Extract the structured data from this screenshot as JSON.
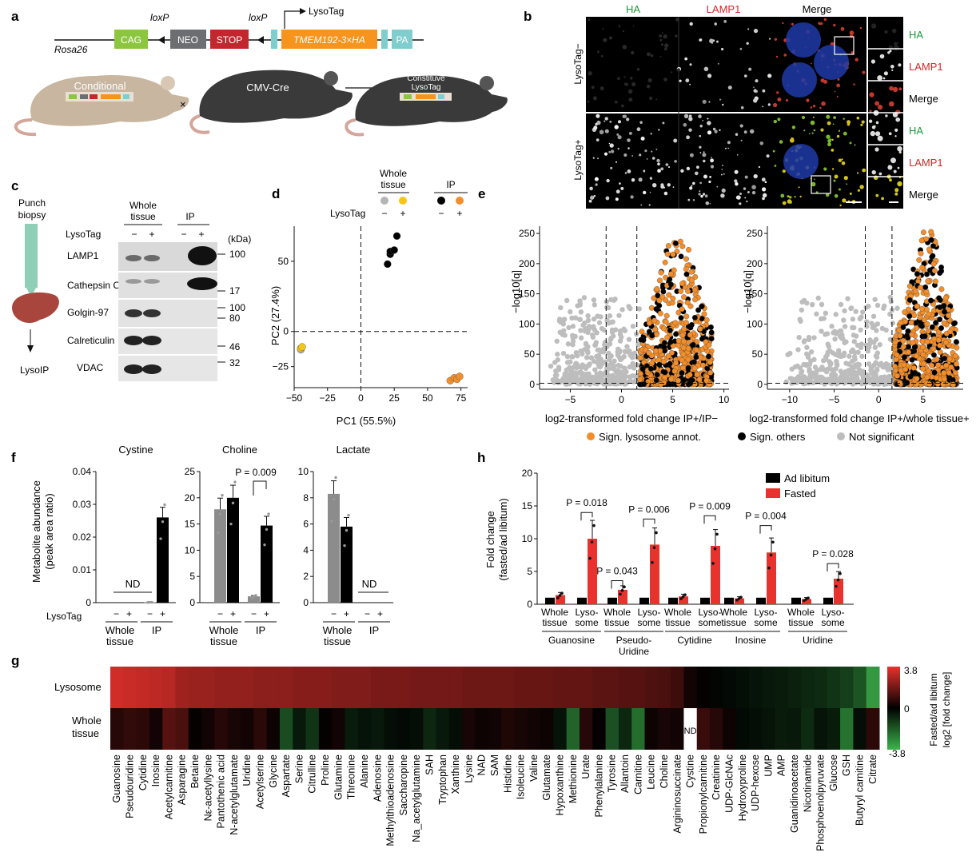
{
  "panels": {
    "a": "a",
    "b": "b",
    "c": "c",
    "d": "d",
    "e": "e",
    "f": "f",
    "g": "g",
    "h": "h"
  },
  "panel_a": {
    "construct": {
      "rosa26": "Rosa26",
      "cag": "CAG",
      "neo": "NEO",
      "stop": "STOP",
      "gene": "TMEM192-3×HA",
      "pa": "PA",
      "loxp1": "loxP",
      "loxp2": "loxP",
      "lysotag": "LysoTag"
    },
    "mice": {
      "conditional": "Conditional",
      "cmvcre": "CMV-Cre",
      "constitutive_1": "Constituve",
      "constitutive_2": "LysoTag",
      "cross": "×"
    },
    "colors": {
      "cag": "#8cc63f",
      "neo": "#6d6e71",
      "stop": "#c1272d",
      "gene": "#f7941d",
      "pa": "#7fcdcd",
      "mouse_tan": "#c8b6a0",
      "mouse_dark": "#3a3a3a"
    }
  },
  "panel_b": {
    "cols": [
      "HA",
      "LAMP1",
      "Merge"
    ],
    "rows": [
      "LysoTag−",
      "LysoTag+"
    ],
    "inset_labels": [
      "HA",
      "LAMP1",
      "Merge"
    ],
    "col_colors": {
      "HA": "#1a9a3a",
      "LAMP1": "#d62728",
      "Merge": "#111111"
    }
  },
  "panel_c": {
    "left_top": "Punch",
    "left_bottom": "biopsy",
    "arrow_label": "LysoIP",
    "group1": "Whole",
    "group1b": "tissue",
    "group2": "IP",
    "lysotag_label": "LysoTag",
    "signs": [
      "−",
      "+",
      "−",
      "+"
    ],
    "kda": "(kDa)",
    "blots": [
      "LAMP1",
      "Cathepsin C",
      "Golgin-97",
      "Calreticulin",
      "VDAC"
    ],
    "markers": [
      "100",
      "17",
      "100",
      "80",
      "46",
      "32"
    ]
  },
  "panel_d": {
    "legend_whole": "Whole",
    "legend_whole2": "tissue",
    "legend_ip": "IP",
    "lysotag_label": "LysoTag",
    "signs": [
      "−",
      "+",
      "−",
      "+"
    ],
    "xlabel": "PC1 (55.5%)",
    "ylabel": "PC2 (27.4%)",
    "xticks": [
      "−50",
      "−25",
      "0",
      "25",
      "50",
      "75"
    ],
    "yticks": [
      "50",
      "0",
      "−25"
    ]
  },
  "panel_e": {
    "ylabel": "−log10[q]",
    "xlabel_left": "log2-transformed fold change IP+/IP−",
    "xlabel_right": "log2-transformed fold change IP+/whole tissue+",
    "yticks": [
      "250",
      "200",
      "150",
      "100",
      "50",
      "0"
    ],
    "xticks_left": [
      "−5",
      "0",
      "5",
      "10"
    ],
    "xticks_right": [
      "−10",
      "−5",
      "0",
      "5"
    ],
    "legend": [
      "Sign. lysosome annot.",
      "Sign. others",
      "Not significant"
    ],
    "colors": {
      "lyso": "#f28e2b",
      "other": "#000000",
      "ns": "#bdbdbd"
    }
  },
  "panel_f": {
    "ylabel1": "Metabolite abundance",
    "ylabel2": "(peak area ratio)",
    "titles": [
      "Cystine",
      "Choline",
      "Lactate"
    ],
    "yticks": [
      [
        "0.04",
        "0.03",
        "0.02",
        "0.01",
        "0"
      ],
      [
        "25",
        "20",
        "15",
        "10",
        "5",
        "0"
      ],
      [
        "10",
        "8",
        "6",
        "4",
        "2",
        "0"
      ]
    ],
    "nd": "ND",
    "pval": "P = 0.009",
    "lysotag_label": "LysoTag",
    "group1": "Whole",
    "group1b": "tissue",
    "group2": "IP",
    "signs": [
      "−",
      "+",
      "−",
      "+"
    ],
    "colors": {
      "minus": "#8c8c8c",
      "plus": "#000000"
    }
  },
  "panel_g": {
    "row_labels": [
      "Lysosome",
      "Whole",
      "tissue"
    ],
    "nd": "ND",
    "metabolites": [
      "Guanosine",
      "Pseudouridine",
      "Cytidine",
      "Inosine",
      "Acetylcarnitine",
      "Asparagine",
      "Betaine",
      "Nε-acetyllysine",
      "Pantothenic acid",
      "N-acetylglutamate",
      "Uridine",
      "Acetylserine",
      "Glycine",
      "Aspartate",
      "Serine",
      "Citrulline",
      "Proline",
      "Glutamine",
      "Threonine",
      "Alanine",
      "Adenosine",
      "Methylthioadenosine",
      "Saccharopine",
      "Na_acetylglutamine",
      "SAH",
      "Tryptophan",
      "Xanthine",
      "Lysine",
      "NAD",
      "SAM",
      "Histidine",
      "Isoleucine",
      "Valine",
      "Glutamate",
      "Hypoxanthine",
      "Methionine",
      "Urate",
      "Phenylalanine",
      "Tyrosine",
      "Allantoin",
      "Carnitine",
      "Leucine",
      "Choline",
      "Argininosuccinate",
      "Cystine",
      "Propionylcarnitine",
      "Creatinine",
      "UDP-GlcNAc",
      "Hydroxyproline",
      "UDP-hexose",
      "UMP",
      "AMP",
      "Guanidinoacetate",
      "Nicotinamide",
      "Phosphoenolpyruvate",
      "Glucose",
      "GSH",
      "Butyryl carnitine",
      "Citrate"
    ],
    "lysosome": [
      3.4,
      3.3,
      3.2,
      3.1,
      3.0,
      2.6,
      2.5,
      2.5,
      2.4,
      2.4,
      2.4,
      2.3,
      2.3,
      2.3,
      2.2,
      2.2,
      2.2,
      2.1,
      2.1,
      2.1,
      2.0,
      2.0,
      2.0,
      1.9,
      1.9,
      1.9,
      1.9,
      1.8,
      1.8,
      1.8,
      1.8,
      1.7,
      1.7,
      1.7,
      1.6,
      1.6,
      1.6,
      1.5,
      1.5,
      1.4,
      1.4,
      1.3,
      1.2,
      1.0,
      0.3,
      0.1,
      -0.1,
      -0.2,
      -0.3,
      -0.4,
      -0.5,
      -0.6,
      -0.7,
      -0.8,
      -0.9,
      -1.1,
      -1.3,
      -1.8,
      -3.2
    ],
    "whole": [
      0.6,
      0.8,
      0.7,
      0.3,
      1.4,
      1.2,
      0.1,
      0.3,
      0.6,
      0.4,
      0.3,
      0.7,
      0.2,
      -1.6,
      -0.5,
      -1.1,
      0.1,
      0.3,
      -0.6,
      -0.4,
      -0.5,
      -0.3,
      -0.2,
      -0.3,
      -0.8,
      -0.5,
      -0.3,
      0.4,
      0.2,
      0.3,
      0.5,
      0.4,
      0.3,
      0.2,
      -0.4,
      -2.1,
      0.6,
      0.1,
      -1.7,
      -0.8,
      -2.3,
      0.2,
      0.4,
      0.3,
      null,
      0.9,
      0.6,
      0.2,
      -0.2,
      -0.3,
      -0.4,
      -0.6,
      -0.5,
      -0.9,
      -0.4,
      -0.6,
      -2.4,
      -0.3,
      0.7
    ],
    "scale_max": "3.8",
    "scale_mid": "0",
    "scale_min": "-3.8",
    "scale_title1": "Fasted/ad libitum",
    "scale_title2": "log2 [fold change]"
  },
  "panel_h": {
    "ylabel1": "Fold change",
    "ylabel2": "(fasted/ad libitum)",
    "yticks": [
      "20",
      "15",
      "10",
      "5",
      "0"
    ],
    "legend": [
      "Ad libitum",
      "Fasted"
    ],
    "colors": {
      "adlib": "#000000",
      "fasted": "#e8322d"
    },
    "pvals": [
      "P = 0.018",
      "P = 0.043",
      "P = 0.006",
      "P = 0.009",
      "P = 0.004",
      "P = 0.028"
    ],
    "groups": [
      "Guanosine",
      "Pseudo-",
      "Uridine",
      "Cytidine",
      "Inosine",
      "Uridine"
    ],
    "sub": [
      "Whole",
      "tissue",
      "Lyso-",
      "some"
    ]
  },
  "chart_data": [
    {
      "type": "scatter",
      "panel": "d",
      "x_label": "PC1 (55.5%)",
      "y_label": "PC2 (27.4%)",
      "xlim": [
        -50,
        80
      ],
      "ylim": [
        -40,
        75
      ],
      "series": [
        {
          "name": "Whole tissue −",
          "color": "#b5b5b5",
          "points": [
            [
              -45,
              -12
            ],
            [
              -45,
              -13
            ]
          ]
        },
        {
          "name": "Whole tissue +",
          "color": "#f5c518",
          "points": [
            [
              -45,
              -12
            ],
            [
              -44,
              -11
            ]
          ]
        },
        {
          "name": "IP −",
          "color": "#000000",
          "points": [
            [
              20,
              48
            ],
            [
              22,
              55
            ],
            [
              22,
              57
            ],
            [
              25,
              58
            ],
            [
              27,
              68
            ]
          ]
        },
        {
          "name": "IP +",
          "color": "#f28e2b",
          "points": [
            [
              67,
              -35
            ],
            [
              70,
              -33
            ],
            [
              72,
              -34
            ],
            [
              74,
              -32
            ]
          ]
        }
      ]
    },
    {
      "type": "bar",
      "panel": "f",
      "title": "Cystine",
      "categories": [
        "WT −",
        "WT +",
        "IP −",
        "IP +"
      ],
      "values": [
        null,
        null,
        0.0001,
        0.026
      ],
      "ylim": [
        0,
        0.04
      ]
    },
    {
      "type": "bar",
      "panel": "f",
      "title": "Choline",
      "categories": [
        "WT −",
        "WT +",
        "IP −",
        "IP +"
      ],
      "values": [
        17.8,
        20.0,
        1.2,
        14.7
      ],
      "ylim": [
        0,
        25
      ]
    },
    {
      "type": "bar",
      "panel": "f",
      "title": "Lactate",
      "categories": [
        "WT −",
        "WT +",
        "IP −",
        "IP +"
      ],
      "values": [
        8.3,
        5.8,
        null,
        null
      ],
      "ylim": [
        0,
        10
      ]
    },
    {
      "type": "bar",
      "panel": "h",
      "ylim": [
        0,
        20
      ],
      "categories": [
        "Guanosine WT",
        "Guanosine Lyso",
        "Pseudouridine WT",
        "Pseudouridine Lyso",
        "Cytidine WT",
        "Cytidine Lyso",
        "Inosine WT",
        "Inosine Lyso",
        "Uridine WT",
        "Uridine Lyso"
      ],
      "series": [
        {
          "name": "Ad libitum",
          "values": [
            1.0,
            1.0,
            1.0,
            1.0,
            1.0,
            1.0,
            1.0,
            1.0,
            1.0,
            1.0
          ]
        },
        {
          "name": "Fasted",
          "values": [
            1.4,
            10.0,
            2.2,
            9.1,
            1.2,
            8.9,
            0.9,
            7.9,
            0.8,
            3.9
          ]
        }
      ]
    }
  ]
}
